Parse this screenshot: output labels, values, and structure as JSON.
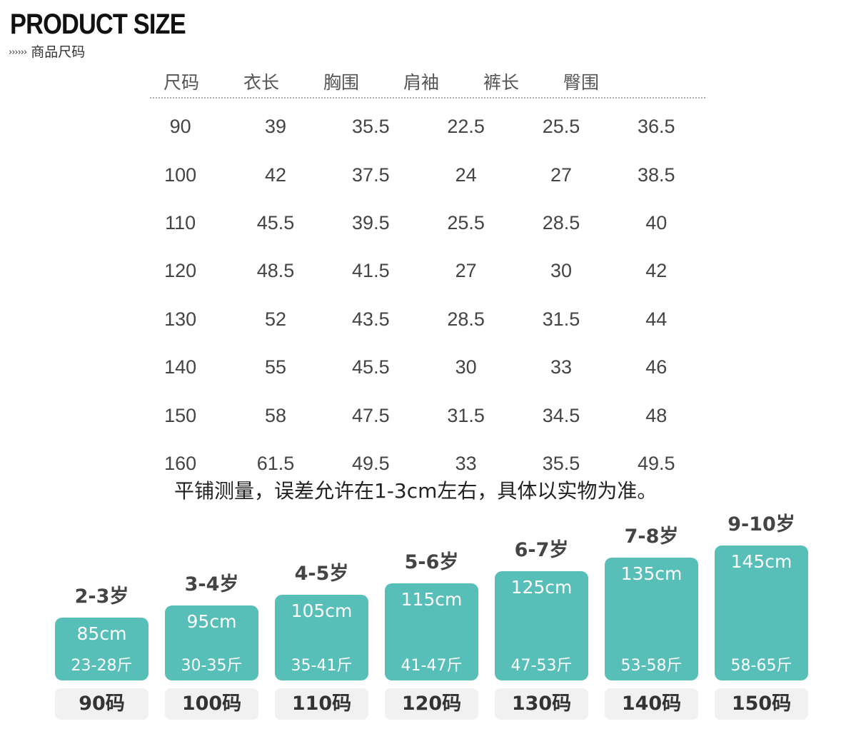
{
  "header": {
    "title": "PRODUCT SIZE",
    "arrows": "››››››",
    "subtitle": "商品尺码"
  },
  "table": {
    "headers": [
      "尺码",
      "衣长",
      "胸围",
      "肩袖",
      "裤长",
      "臀围"
    ],
    "rows": [
      [
        "90",
        "39",
        "35.5",
        "22.5",
        "25.5",
        "36.5"
      ],
      [
        "100",
        "42",
        "37.5",
        "24",
        "27",
        "38.5"
      ],
      [
        "110",
        "45.5",
        "39.5",
        "25.5",
        "28.5",
        "40"
      ],
      [
        "120",
        "48.5",
        "41.5",
        "27",
        "30",
        "42"
      ],
      [
        "130",
        "52",
        "43.5",
        "28.5",
        "31.5",
        "44"
      ],
      [
        "140",
        "55",
        "45.5",
        "30",
        "33",
        "46"
      ],
      [
        "150",
        "58",
        "47.5",
        "31.5",
        "34.5",
        "48"
      ],
      [
        "160",
        "61.5",
        "49.5",
        "33",
        "35.5",
        "49.5"
      ]
    ]
  },
  "note": "平铺测量，误差允许在1-3cm左右，具体以实物为准。",
  "ages": [
    {
      "age": "2-3岁",
      "height": "85cm",
      "weight": "23-28斤",
      "size": "90码"
    },
    {
      "age": "3-4岁",
      "height": "95cm",
      "weight": "30-35斤",
      "size": "100码"
    },
    {
      "age": "4-5岁",
      "height": "105cm",
      "weight": "35-41斤",
      "size": "110码"
    },
    {
      "age": "5-6岁",
      "height": "115cm",
      "weight": "41-47斤",
      "size": "120码"
    },
    {
      "age": "6-7岁",
      "height": "125cm",
      "weight": "47-53斤",
      "size": "130码"
    },
    {
      "age": "7-8岁",
      "height": "135cm",
      "weight": "53-58斤",
      "size": "140码"
    },
    {
      "age": "9-10岁",
      "height": "145cm",
      "weight": "58-65斤",
      "size": "150码"
    }
  ],
  "colors": {
    "accent": "#57bfb8",
    "pill": "#f1f1f1"
  }
}
